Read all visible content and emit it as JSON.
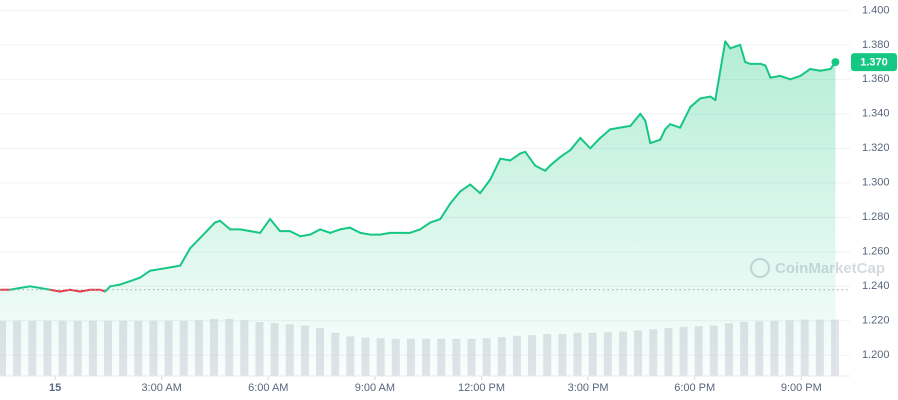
{
  "chart_data": {
    "type": "line",
    "x": [
      -1.55,
      -1.27,
      -0.99,
      -0.7,
      -0.42,
      -0.14,
      0.14,
      0.42,
      0.7,
      0.99,
      1.27,
      1.41,
      1.55,
      1.83,
      2.11,
      2.39,
      2.67,
      2.96,
      3.24,
      3.52,
      3.8,
      4.08,
      4.36,
      4.5,
      4.64,
      4.93,
      5.21,
      5.49,
      5.77,
      6.05,
      6.33,
      6.61,
      6.9,
      7.18,
      7.46,
      7.74,
      8.02,
      8.3,
      8.59,
      8.87,
      9.15,
      9.43,
      9.71,
      9.99,
      10.27,
      10.56,
      10.84,
      11.12,
      11.4,
      11.68,
      11.96,
      12.25,
      12.53,
      12.81,
      13.09,
      13.23,
      13.51,
      13.79,
      13.93,
      14.22,
      14.5,
      14.78,
      15.06,
      15.34,
      15.62,
      15.9,
      16.19,
      16.47,
      16.61,
      16.75,
      17.03,
      17.17,
      17.31,
      17.59,
      17.88,
      18.16,
      18.44,
      18.58,
      18.86,
      19.0,
      19.28,
      19.42,
      19.56,
      19.85,
      19.99,
      20.13,
      20.41,
      20.69,
      20.97,
      21.25,
      21.53,
      21.82,
      21.96
    ],
    "values": [
      1.238,
      1.238,
      1.239,
      1.24,
      1.239,
      1.238,
      1.237,
      1.238,
      1.237,
      1.238,
      1.238,
      1.237,
      1.24,
      1.241,
      1.243,
      1.245,
      1.249,
      1.25,
      1.251,
      1.252,
      1.262,
      1.268,
      1.274,
      1.277,
      1.278,
      1.273,
      1.273,
      1.272,
      1.271,
      1.279,
      1.272,
      1.272,
      1.269,
      1.27,
      1.273,
      1.271,
      1.273,
      1.274,
      1.271,
      1.27,
      1.27,
      1.271,
      1.271,
      1.271,
      1.273,
      1.277,
      1.279,
      1.288,
      1.295,
      1.299,
      1.294,
      1.302,
      1.314,
      1.313,
      1.317,
      1.318,
      1.31,
      1.307,
      1.31,
      1.315,
      1.319,
      1.326,
      1.32,
      1.326,
      1.331,
      1.332,
      1.333,
      1.34,
      1.336,
      1.323,
      1.325,
      1.331,
      1.334,
      1.332,
      1.344,
      1.349,
      1.35,
      1.348,
      1.382,
      1.378,
      1.38,
      1.37,
      1.369,
      1.369,
      1.368,
      1.361,
      1.362,
      1.36,
      1.362,
      1.366,
      1.365,
      1.366,
      1.37
    ],
    "color": "#16c784",
    "down_color": "#ea3943",
    "reference_price": 1.238,
    "xlim": [
      -1.55,
      22.37
    ],
    "ylim": [
      1.188,
      1.406
    ],
    "xticks": [
      {
        "value": 0,
        "label": "15"
      },
      {
        "value": 3,
        "label": "3:00 AM"
      },
      {
        "value": 6,
        "label": "6:00 AM"
      },
      {
        "value": 9,
        "label": "9:00 AM"
      },
      {
        "value": 12,
        "label": "12:00 PM"
      },
      {
        "value": 15,
        "label": "3:00 PM"
      },
      {
        "value": 18,
        "label": "6:00 PM"
      },
      {
        "value": 21,
        "label": "9:00 PM"
      }
    ],
    "yticks": [
      {
        "value": 1.2,
        "label": "1.200"
      },
      {
        "value": 1.22,
        "label": "1.220"
      },
      {
        "value": 1.24,
        "label": "1.240"
      },
      {
        "value": 1.26,
        "label": "1.260"
      },
      {
        "value": 1.28,
        "label": "1.280"
      },
      {
        "value": 1.3,
        "label": "1.300"
      },
      {
        "value": 1.32,
        "label": "1.320"
      },
      {
        "value": 1.34,
        "label": "1.340"
      },
      {
        "value": 1.36,
        "label": "1.360"
      },
      {
        "value": 1.38,
        "label": "1.380"
      },
      {
        "value": 1.4,
        "label": "1.400"
      }
    ],
    "grid": true,
    "price_tag": {
      "value": 1.37,
      "label": "1.370"
    },
    "volume": {
      "color": "#d9dbe1",
      "y2lim": [
        0,
        100
      ],
      "values": [
        92,
        92,
        92,
        92,
        92,
        92,
        92,
        92,
        92,
        92,
        92,
        92,
        92,
        93,
        95,
        95,
        93,
        90,
        88,
        86,
        84,
        80,
        72,
        66,
        64,
        63,
        62,
        62,
        62,
        62,
        62,
        62,
        63,
        65,
        67,
        68,
        70,
        70,
        72,
        72,
        73,
        74,
        76,
        78,
        80,
        82,
        83,
        84,
        88,
        90,
        91,
        92,
        93,
        94,
        94,
        94
      ]
    },
    "watermark": "CoinMarketCap"
  }
}
